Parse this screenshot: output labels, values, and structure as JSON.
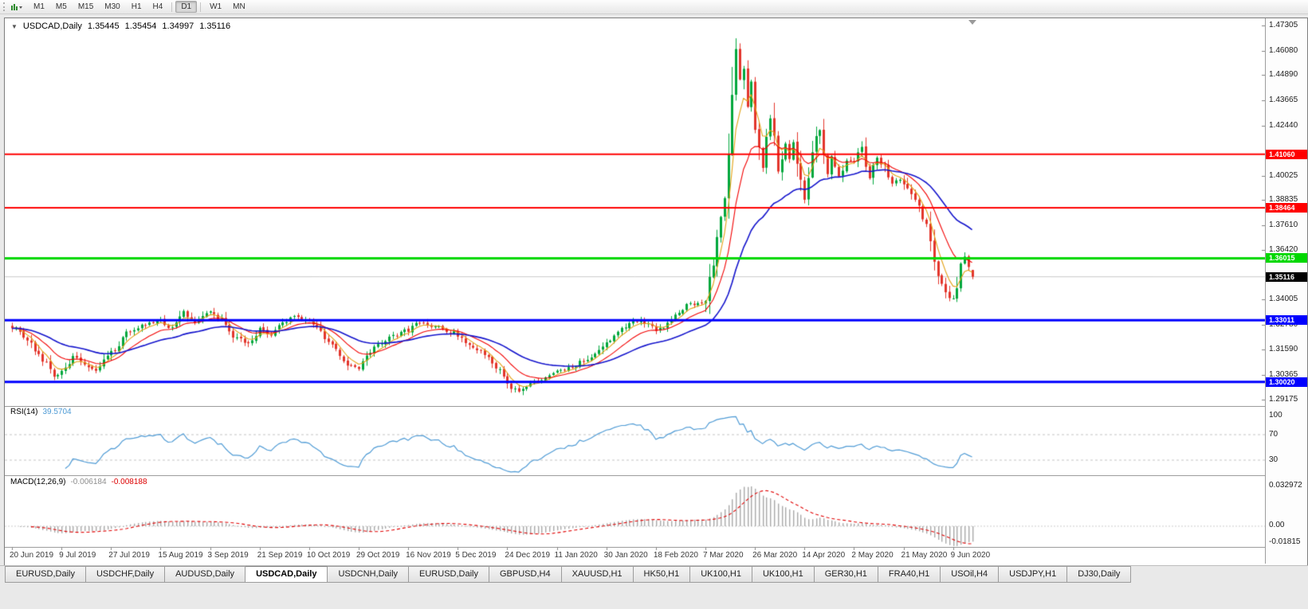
{
  "toolbar": {
    "timeframes": [
      {
        "label": "M1",
        "active": false
      },
      {
        "label": "M5",
        "active": false
      },
      {
        "label": "M15",
        "active": false
      },
      {
        "label": "M30",
        "active": false
      },
      {
        "label": "H1",
        "active": false
      },
      {
        "label": "H4",
        "active": false
      },
      {
        "label": "D1",
        "active": true
      },
      {
        "label": "W1",
        "active": false
      },
      {
        "label": "MN",
        "active": false
      }
    ]
  },
  "chart_header": {
    "symbol": "USDCAD,Daily",
    "open": "1.35445",
    "high": "1.35454",
    "low": "1.34997",
    "close": "1.35116"
  },
  "indicators": {
    "rsi": {
      "name": "RSI(14)",
      "value": "39.5704",
      "axis_labels": [
        "100",
        "70",
        "30"
      ]
    },
    "macd": {
      "name": "MACD(12,26,9)",
      "main_value": "-0.006184",
      "signal_value": "-0.008188",
      "axis_labels": [
        "0.032972",
        "0.00",
        "-0.01815"
      ]
    }
  },
  "tabs": [
    {
      "label": "EURUSD,Daily",
      "active": false
    },
    {
      "label": "USDCHF,Daily",
      "active": false
    },
    {
      "label": "AUDUSD,Daily",
      "active": false
    },
    {
      "label": "USDCAD,Daily",
      "active": true
    },
    {
      "label": "USDCNH,Daily",
      "active": false
    },
    {
      "label": "EURUSD,Daily",
      "active": false
    },
    {
      "label": "GBPUSD,H4",
      "active": false
    },
    {
      "label": "XAUUSD,H1",
      "active": false
    },
    {
      "label": "HK50,H1",
      "active": false
    },
    {
      "label": "UK100,H1",
      "active": false
    },
    {
      "label": "UK100,H1",
      "active": false
    },
    {
      "label": "GER30,H1",
      "active": false
    },
    {
      "label": "FRA40,H1",
      "active": false
    },
    {
      "label": "USOil,H4",
      "active": false
    },
    {
      "label": "USDJPY,H1",
      "active": false
    },
    {
      "label": "DJ30,Daily",
      "active": false
    }
  ],
  "chart_data": {
    "type": "candlestick",
    "symbol": "USDCAD",
    "timeframe": "Daily",
    "price_range": [
      1.2885,
      1.4765
    ],
    "bar_count": 253,
    "x_label_every": 13,
    "x_labels": [
      "20 Jun 2019",
      "9 Jul 2019",
      "27 Jul 2019",
      "15 Aug 2019",
      "3 Sep 2019",
      "21 Sep 2019",
      "10 Oct 2019",
      "29 Oct 2019",
      "16 Nov 2019",
      "5 Dec 2019",
      "24 Dec 2019",
      "11 Jan 2020",
      "30 Jan 2020",
      "18 Feb 2020",
      "7 Mar 2020",
      "26 Mar 2020",
      "14 Apr 2020",
      "2 May 2020",
      "21 May 2020",
      "9 Jun 2020"
    ],
    "y_ticks": [
      1.47305,
      1.4608,
      1.4489,
      1.43665,
      1.4244,
      1.40025,
      1.38835,
      1.3761,
      1.3642,
      1.34005,
      1.3278,
      1.3159,
      1.30365,
      1.29175
    ],
    "close_anchors": [
      [
        0,
        1.327
      ],
      [
        4,
        1.3205
      ],
      [
        8,
        1.311
      ],
      [
        11,
        1.3035
      ],
      [
        13,
        1.3055
      ],
      [
        16,
        1.312
      ],
      [
        19,
        1.3085
      ],
      [
        22,
        1.306
      ],
      [
        26,
        1.314
      ],
      [
        30,
        1.3235
      ],
      [
        34,
        1.3275
      ],
      [
        39,
        1.33
      ],
      [
        42,
        1.326
      ],
      [
        45,
        1.334
      ],
      [
        48,
        1.329
      ],
      [
        52,
        1.3345
      ],
      [
        55,
        1.33
      ],
      [
        58,
        1.3225
      ],
      [
        62,
        1.319
      ],
      [
        65,
        1.326
      ],
      [
        68,
        1.323
      ],
      [
        71,
        1.329
      ],
      [
        74,
        1.332
      ],
      [
        78,
        1.33
      ],
      [
        81,
        1.3245
      ],
      [
        84,
        1.317
      ],
      [
        88,
        1.309
      ],
      [
        91,
        1.3065
      ],
      [
        94,
        1.315
      ],
      [
        98,
        1.3205
      ],
      [
        101,
        1.323
      ],
      [
        104,
        1.3255
      ],
      [
        107,
        1.329
      ],
      [
        110,
        1.327
      ],
      [
        113,
        1.326
      ],
      [
        117,
        1.323
      ],
      [
        120,
        1.3175
      ],
      [
        124,
        1.3135
      ],
      [
        127,
        1.308
      ],
      [
        130,
        1.2985
      ],
      [
        133,
        1.2958
      ],
      [
        136,
        1.299
      ],
      [
        139,
        1.302
      ],
      [
        143,
        1.3055
      ],
      [
        147,
        1.3075
      ],
      [
        150,
        1.3105
      ],
      [
        153,
        1.314
      ],
      [
        156,
        1.319
      ],
      [
        159,
        1.3245
      ],
      [
        162,
        1.329
      ],
      [
        165,
        1.33
      ],
      [
        169,
        1.3255
      ],
      [
        172,
        1.328
      ],
      [
        175,
        1.334
      ],
      [
        178,
        1.339
      ],
      [
        180,
        1.3375
      ],
      [
        182,
        1.342
      ],
      [
        184,
        1.36
      ],
      [
        186,
        1.378
      ],
      [
        188,
        1.405
      ],
      [
        189,
        1.442
      ],
      [
        190,
        1.46
      ],
      [
        191,
        1.448
      ],
      [
        192,
        1.454
      ],
      [
        193,
        1.434
      ],
      [
        194,
        1.444
      ],
      [
        195,
        1.425
      ],
      [
        196,
        1.41
      ],
      [
        197,
        1.405
      ],
      [
        198,
        1.416
      ],
      [
        199,
        1.428
      ],
      [
        200,
        1.418
      ],
      [
        201,
        1.403
      ],
      [
        202,
        1.408
      ],
      [
        203,
        1.415
      ],
      [
        204,
        1.409
      ],
      [
        205,
        1.417
      ],
      [
        206,
        1.406
      ],
      [
        207,
        1.396
      ],
      [
        208,
        1.388
      ],
      [
        209,
        1.399
      ],
      [
        210,
        1.409
      ],
      [
        211,
        1.417
      ],
      [
        212,
        1.423
      ],
      [
        213,
        1.408
      ],
      [
        214,
        1.402
      ],
      [
        215,
        1.41
      ],
      [
        216,
        1.406
      ],
      [
        217,
        1.399
      ],
      [
        218,
        1.401
      ],
      [
        219,
        1.406
      ],
      [
        221,
        1.408
      ],
      [
        223,
        1.413
      ],
      [
        225,
        1.3985
      ],
      [
        227,
        1.409
      ],
      [
        229,
        1.405
      ],
      [
        231,
        1.3955
      ],
      [
        233,
        1.399
      ],
      [
        234,
        1.3965
      ],
      [
        236,
        1.3905
      ],
      [
        238,
        1.3855
      ],
      [
        240,
        1.376
      ],
      [
        241,
        1.368
      ],
      [
        242,
        1.358
      ],
      [
        243,
        1.353
      ],
      [
        244,
        1.349
      ],
      [
        245,
        1.3445
      ],
      [
        246,
        1.342
      ],
      [
        247,
        1.3395
      ],
      [
        248,
        1.345
      ],
      [
        249,
        1.355
      ],
      [
        250,
        1.3615
      ],
      [
        251,
        1.3575
      ],
      [
        252,
        1.35116
      ]
    ],
    "extreme_high": {
      "index": 190,
      "value": 1.4668
    },
    "extreme_low": {
      "index": 133,
      "value": 1.2952
    },
    "last_ohlc": {
      "open": 1.35445,
      "high": 1.35454,
      "low": 1.34997,
      "close": 1.35116
    },
    "candle_colors": {
      "up": "#00a73c",
      "down": "#e3352b"
    },
    "moving_averages": [
      {
        "period": 5,
        "type": "ema",
        "color": "#e2a114"
      },
      {
        "period": 13,
        "type": "ema",
        "color": "#f20000"
      },
      {
        "period": 34,
        "type": "ema",
        "color": "#1414cc"
      }
    ],
    "horizontal_lines": [
      {
        "value": 1.4106,
        "color": "#ff0000",
        "width": 2
      },
      {
        "value": 1.38464,
        "color": "#ff0000",
        "width": 2
      },
      {
        "value": 1.36015,
        "color": "#00d800",
        "width": 3
      },
      {
        "value": 1.33011,
        "color": "#0000ff",
        "width": 3
      },
      {
        "value": 1.3002,
        "color": "#0000ff",
        "width": 3
      }
    ],
    "current_price": 1.35116,
    "rsi": {
      "period": 14,
      "levels": [
        70,
        30
      ],
      "color": "#4f9bd5",
      "last": 39.5704
    },
    "macd": {
      "fast": 12,
      "slow": 26,
      "signal": 9,
      "hist_color": "#a8a8a8",
      "signal_color": "#e00000",
      "last_main": -0.006184,
      "last_signal": -0.008188,
      "scale_max": 0.032972,
      "scale_zero": 0.0,
      "scale_min": -0.01815
    }
  }
}
